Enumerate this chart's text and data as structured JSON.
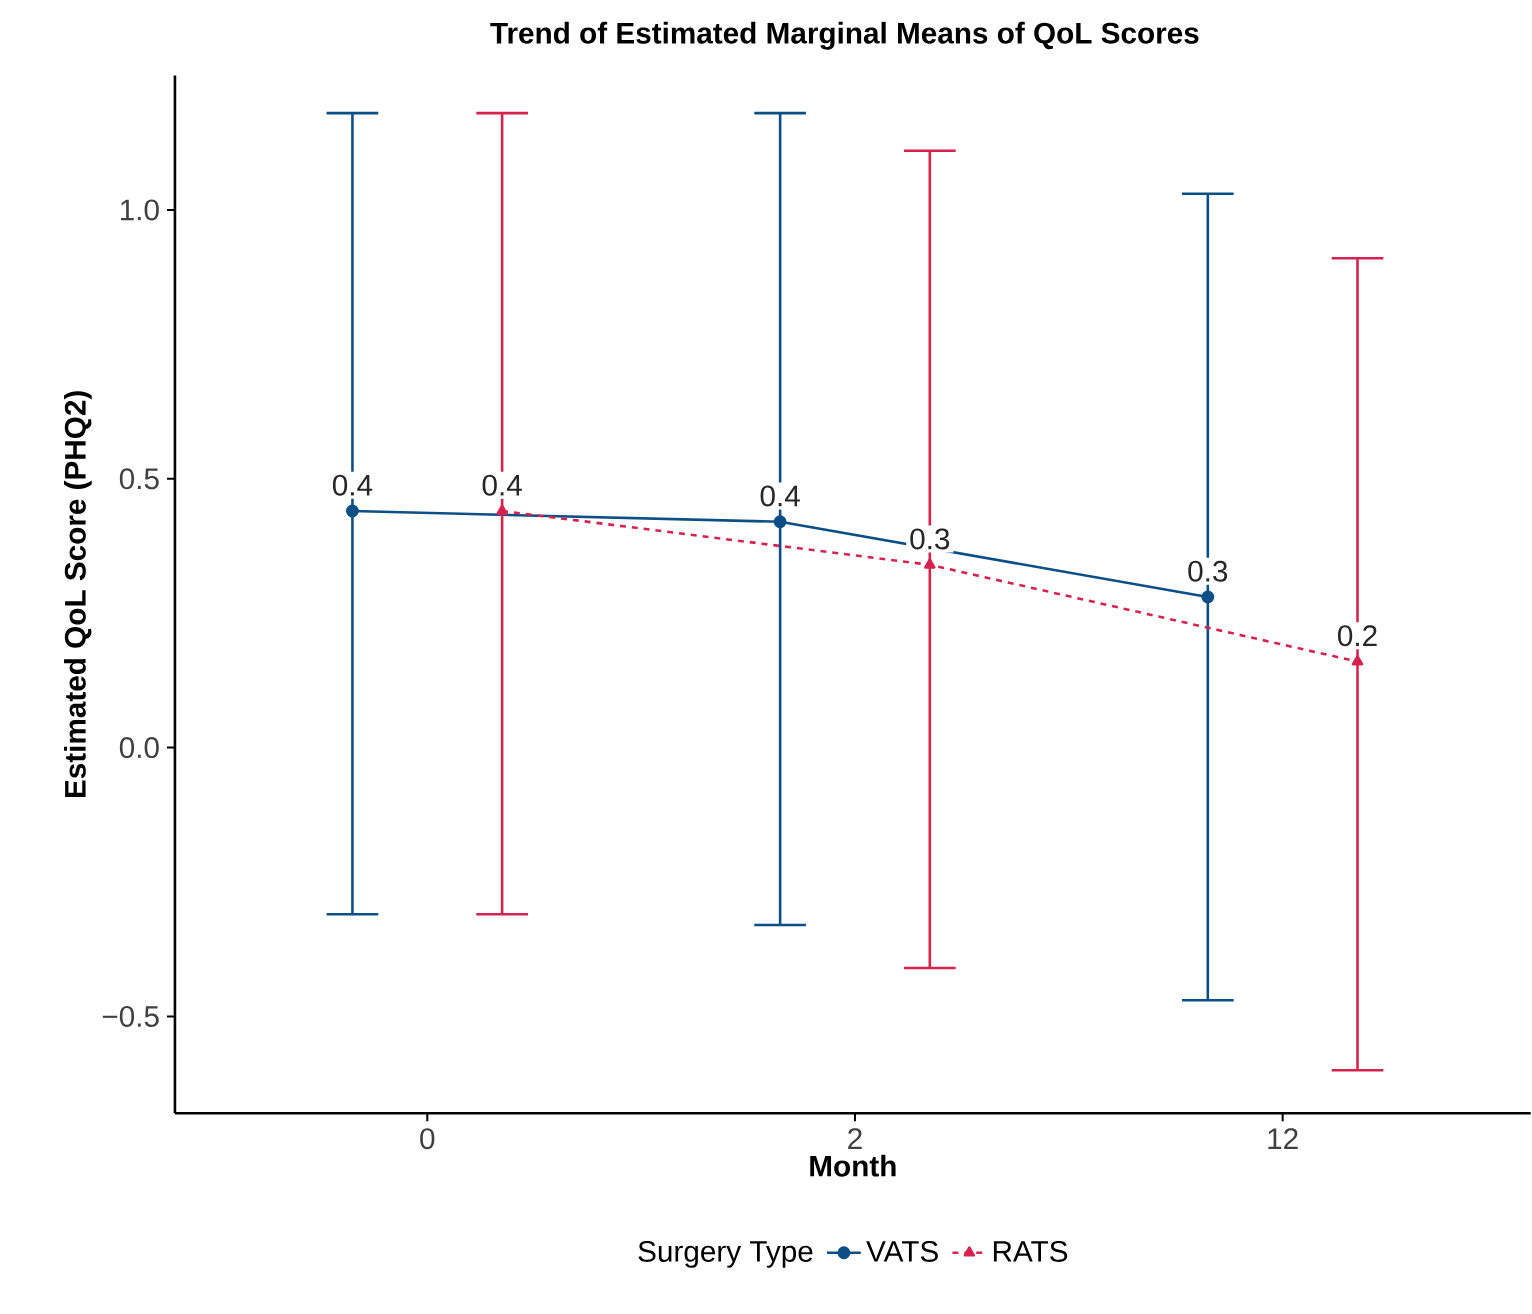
{
  "chart_data": {
    "type": "line",
    "title": "Trend of Estimated Marginal Means of QoL Scores",
    "xlabel": "Month",
    "ylabel": "Estimated QoL Score (PHQ2)",
    "legend_title": "Surgery Type",
    "categories": [
      "0",
      "2",
      "12"
    ],
    "series": [
      {
        "name": "VATS",
        "color": "#0b4f86",
        "marker": "circle",
        "line_style": "solid",
        "values": [
          0.44,
          0.42,
          0.28
        ],
        "errors": [
          [
            -0.31,
            1.18
          ],
          [
            -0.33,
            1.18
          ],
          [
            -0.47,
            1.03
          ]
        ],
        "value_labels": [
          "0.4",
          "0.4",
          "0.3"
        ]
      },
      {
        "name": "RATS",
        "color": "#d6224f",
        "marker": "triangle",
        "line_style": "dashed",
        "values": [
          0.44,
          0.34,
          0.16
        ],
        "errors": [
          [
            -0.31,
            1.18
          ],
          [
            -0.41,
            1.11
          ],
          [
            -0.6,
            0.91
          ]
        ],
        "value_labels": [
          "0.4",
          "0.3",
          "0.2"
        ]
      }
    ],
    "ylim": [
      -0.68,
      1.25
    ],
    "yticks": [
      {
        "value": -0.5,
        "label": "−0.5"
      },
      {
        "value": 0,
        "label": "0.0"
      },
      {
        "value": 0.5,
        "label": "0.5"
      },
      {
        "value": 1,
        "label": "1.0"
      }
    ],
    "grid": false,
    "legend": "bottom"
  }
}
